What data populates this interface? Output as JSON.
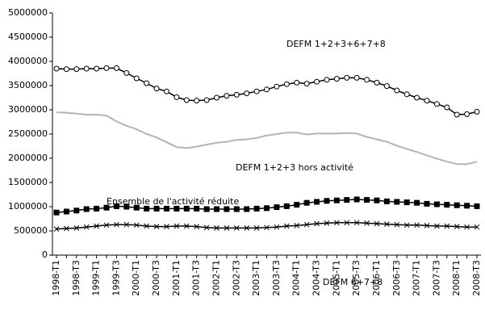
{
  "chart_data": {
    "type": "line",
    "categories": [
      "1998-T1",
      null,
      "1998-T3",
      null,
      "1999-T1",
      null,
      "1999-T3",
      null,
      "2000-T1",
      null,
      "2000-T3",
      null,
      "2001-T1",
      null,
      "2001-T3",
      null,
      "2002-T1",
      null,
      "2002-T3",
      null,
      "2003-T1",
      null,
      "2003-T3",
      null,
      "2004-T1",
      null,
      "2004-T3",
      null,
      "2005-T1",
      null,
      "2005-T3",
      null,
      "2006-T1",
      null,
      "2006-T3",
      null,
      "2007-T1",
      null,
      "2007-T3",
      null,
      "2008-T1",
      null,
      "2008-T3"
    ],
    "series": [
      {
        "name": "DEFM 1+2+3+6+7+8",
        "color": "#000000",
        "marker": "circle",
        "values": [
          3850000,
          3840000,
          3840000,
          3850000,
          3850000,
          3860000,
          3860000,
          3760000,
          3650000,
          3550000,
          3440000,
          3380000,
          3260000,
          3200000,
          3190000,
          3200000,
          3250000,
          3290000,
          3310000,
          3340000,
          3380000,
          3420000,
          3480000,
          3530000,
          3560000,
          3540000,
          3580000,
          3620000,
          3640000,
          3660000,
          3660000,
          3620000,
          3560000,
          3490000,
          3400000,
          3320000,
          3250000,
          3190000,
          3120000,
          3050000,
          2900000,
          2910000,
          2960000
        ]
      },
      {
        "name": "DEFM 1+2+3 hors activité",
        "color": "#b4b4b4",
        "marker": "none",
        "values": [
          2950000,
          2940000,
          2920000,
          2900000,
          2900000,
          2880000,
          2760000,
          2670000,
          2600000,
          2500000,
          2430000,
          2330000,
          2230000,
          2210000,
          2240000,
          2280000,
          2320000,
          2340000,
          2380000,
          2390000,
          2420000,
          2470000,
          2500000,
          2530000,
          2530000,
          2490000,
          2510000,
          2510000,
          2510000,
          2520000,
          2510000,
          2440000,
          2390000,
          2340000,
          2260000,
          2190000,
          2130000,
          2060000,
          1990000,
          1930000,
          1880000,
          1880000,
          1930000
        ]
      },
      {
        "name": "Ensemble de l'activité réduite",
        "color": "#000000",
        "marker": "square",
        "values": [
          880000,
          900000,
          920000,
          950000,
          960000,
          980000,
          1010000,
          1000000,
          980000,
          960000,
          960000,
          960000,
          960000,
          960000,
          960000,
          950000,
          950000,
          950000,
          950000,
          950000,
          960000,
          970000,
          990000,
          1010000,
          1040000,
          1080000,
          1100000,
          1120000,
          1130000,
          1140000,
          1150000,
          1140000,
          1130000,
          1110000,
          1100000,
          1090000,
          1080000,
          1060000,
          1050000,
          1040000,
          1030000,
          1020000,
          1010000
        ]
      },
      {
        "name": "DEFM 6+7+8",
        "color": "#000000",
        "marker": "x",
        "values": [
          540000,
          550000,
          560000,
          580000,
          600000,
          620000,
          630000,
          630000,
          620000,
          600000,
          590000,
          590000,
          600000,
          600000,
          590000,
          570000,
          560000,
          560000,
          560000,
          560000,
          560000,
          570000,
          580000,
          600000,
          610000,
          630000,
          650000,
          660000,
          670000,
          670000,
          670000,
          660000,
          650000,
          640000,
          630000,
          620000,
          620000,
          610000,
          600000,
          600000,
          590000,
          580000,
          580000
        ]
      }
    ],
    "ylim": [
      0,
      5000000
    ],
    "yticks": [
      0,
      500000,
      1000000,
      1500000,
      2000000,
      2500000,
      3000000,
      3500000,
      4000000,
      4500000,
      5000000
    ],
    "grid": false
  }
}
